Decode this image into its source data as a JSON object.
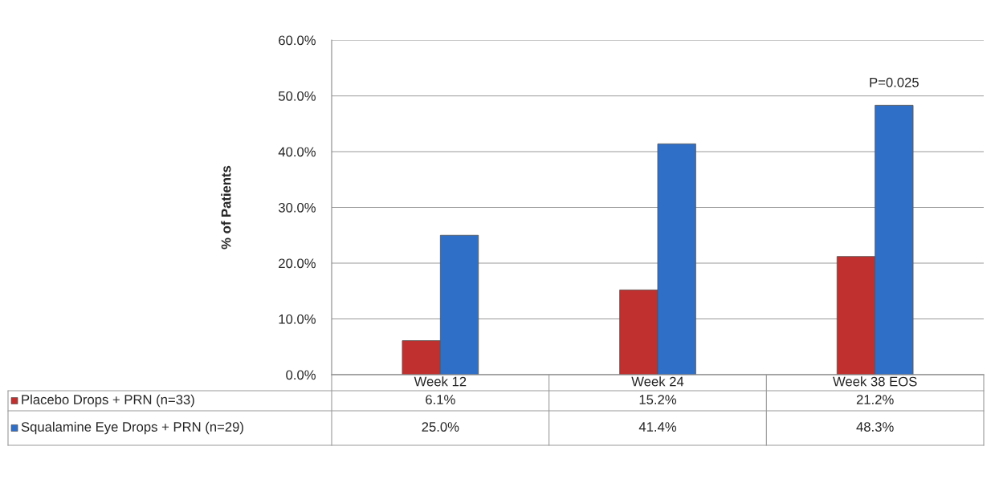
{
  "chart_data": {
    "type": "bar",
    "ylabel": "% of Patients",
    "categories": [
      "Week 12",
      "Week 24",
      "Week 38 EOS"
    ],
    "series": [
      {
        "name": "Placebo Drops + PRN (n=33)",
        "color": "#c0302e",
        "values": [
          6.1,
          15.2,
          21.2
        ],
        "value_labels": [
          "6.1%",
          "15.2%",
          "21.2%"
        ]
      },
      {
        "name": "Squalamine Eye Drops + PRN (n=29)",
        "color": "#2f6fc8",
        "values": [
          25.0,
          41.4,
          48.3
        ],
        "value_labels": [
          "25.0%",
          "41.4%",
          "48.3%"
        ]
      }
    ],
    "ylim": [
      0,
      60
    ],
    "yticks": [
      {
        "value": 0,
        "label": "0.0%"
      },
      {
        "value": 10,
        "label": "10.0%"
      },
      {
        "value": 20,
        "label": "20.0%"
      },
      {
        "value": 30,
        "label": "30.0%"
      },
      {
        "value": 40,
        "label": "40.0%"
      },
      {
        "value": 50,
        "label": "50.0%"
      },
      {
        "value": 60,
        "label": "60.0%"
      }
    ],
    "grid": "y",
    "legend": "bottom",
    "annotations": [
      {
        "text": "P=0.025",
        "x": "Week 38 EOS",
        "y": 48.3
      }
    ]
  }
}
